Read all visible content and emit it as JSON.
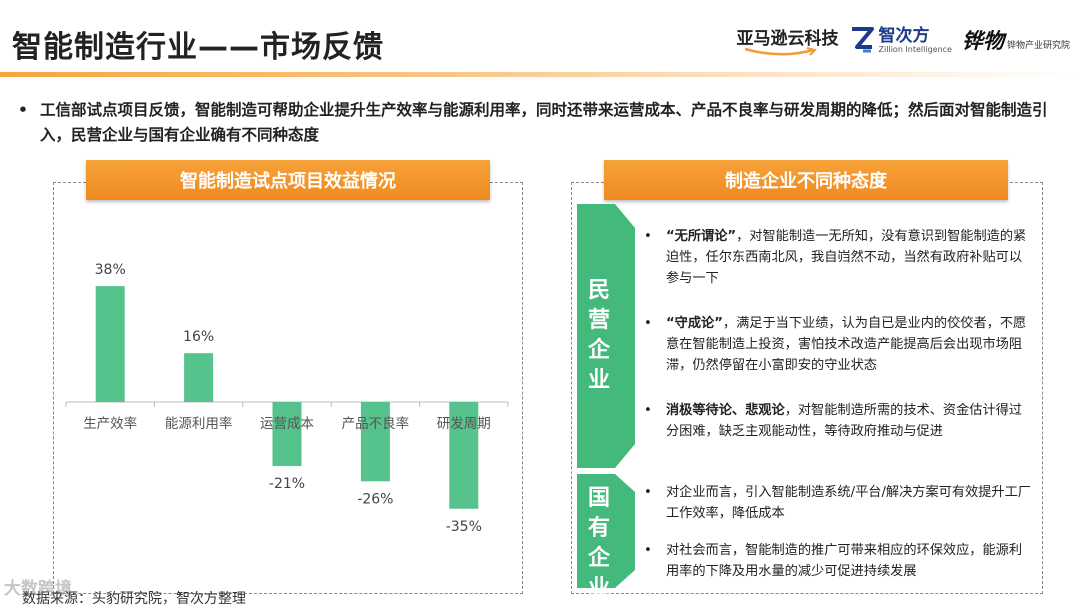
{
  "header": {
    "title": "智能制造行业——市场反馈",
    "logos": {
      "amazon": "亚马逊云科技",
      "zhicifang_zh": "智次方",
      "zhicifang_en": "Zillion Intelligence",
      "huaqiu_zh": "铧物",
      "huaqiu_sub": "铧物产业研究院"
    },
    "accent_color": "#f29b35"
  },
  "summary": {
    "bullet": "•",
    "text": "工信部试点项目反馈，智能制造可帮助企业提升生产效率与能源利用率，同时还带来运营成本、产品不良率与研发周期的降低；然后面对智能制造引入，民营企业与国有企业确有不同种态度"
  },
  "left_panel": {
    "banner": "智能制造试点项目效益情况"
  },
  "chart_data": {
    "type": "bar",
    "categories": [
      "生产效率",
      "能源利用率",
      "运营成本",
      "产品不良率",
      "研发周期"
    ],
    "values": [
      38,
      16,
      -21,
      -26,
      -35
    ],
    "value_labels": [
      "38%",
      "16%",
      "-21%",
      "-26%",
      "-35%"
    ],
    "bar_color": "#56c28c",
    "ylim": [
      -40,
      45
    ],
    "grid": false,
    "title": "",
    "xlabel": "",
    "ylabel": ""
  },
  "right_panel": {
    "banner": "制造企业不同种态度",
    "color": "#44b97c",
    "private": {
      "label": "民营企业",
      "points": [
        {
          "bold": "“无所谓论”",
          "text": "，对智能制造一无所知，没有意识到智能制造的紧迫性，任尔东西南北风，我自岿然不动，当然有政府补贴可以参与一下"
        },
        {
          "bold": "“守成论”",
          "text": "，满足于当下业绩，认为自已是业内的佼佼者，不愿意在智能制造上投资，害怕技术改造产能提高后会出现市场阻滞，仍然停留在小富即安的守业状态"
        },
        {
          "bold": "消极等待论、悲观论",
          "text": "，对智能制造所需的技术、资金估计得过分困难，缺乏主观能动性，等待政府推动与促进"
        }
      ]
    },
    "state": {
      "label": "国有企业",
      "points": [
        {
          "bold": "",
          "text": "对企业而言，引入智能制造系统/平台/解决方案可有效提升工厂工作效率，降低成本"
        },
        {
          "bold": "",
          "text": "对社会而言，智能制造的推广可带来相应的环保效应，能源利用率的下降及用水量的减少可促进持续发展"
        }
      ]
    },
    "bullet": "•"
  },
  "footer": {
    "source": "数据来源：头豹研究院，智次方整理",
    "watermark": "大数跨境"
  }
}
